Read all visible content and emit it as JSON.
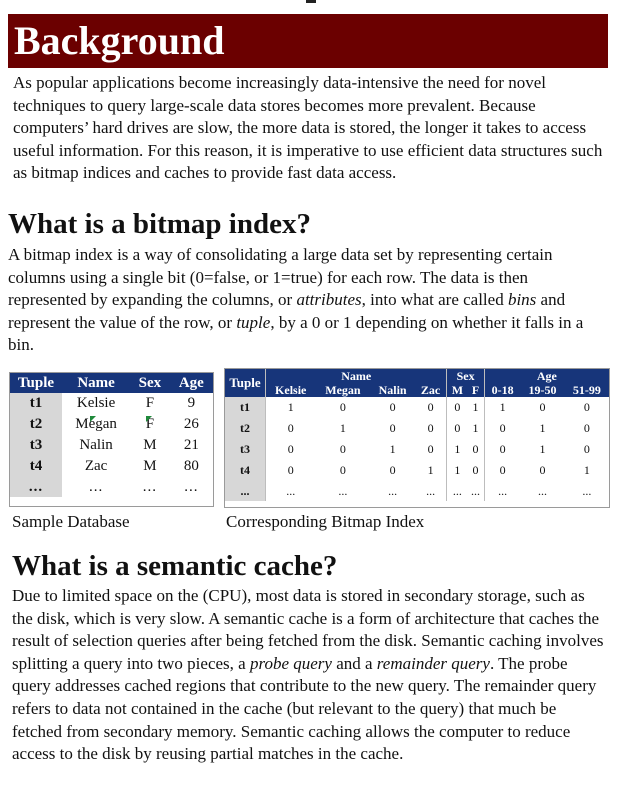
{
  "sections": {
    "background": {
      "title": "Background",
      "body": "As popular applications become increasingly data-intensive the need for novel techniques to query large-scale data stores becomes more prevalent. Because computers’ hard drives are slow, the more data is stored, the longer it takes to access useful information. For this reason, it is imperative to use efficient data structures such as bitmap indices and caches to provide fast data access."
    },
    "bitmap_index": {
      "title": "What is a bitmap index?",
      "body_1": "A bitmap index is a way of consolidating a large data set by representing certain columns using a single bit (0=false, or 1=true) for each row. The data is then represented by expanding the columns, or ",
      "attributes": "attributes",
      "body_2": ", into what are called ",
      "bins": "bins",
      "body_3": " and represent the value of the row, or ",
      "tuple": "tuple",
      "body_4": ",  by a 0 or 1 depending on whether it falls in a bin."
    },
    "semantic_cache": {
      "title": "What is a semantic cache?",
      "body_1": "Due to limited space on the (CPU), most data is stored in secondary storage, such as the disk, which is very slow. A semantic cache is a form of architecture that caches the result of selection queries after being fetched from the disk. Semantic caching involves splitting a query into two pieces, a ",
      "probe": "probe query",
      "body_2": " and a ",
      "remainder": "remainder query",
      "body_3": ". The probe query addresses cached regions that contribute to the new query. The remainder query refers to data not contained in the cache (but relevant to the query) that much be fetched from secondary memory. Semantic caching allows the computer to reduce access to the disk by reusing partial matches in the cache."
    }
  },
  "sample_table": {
    "caption": "Sample Database",
    "headers": [
      "Tuple",
      "Name",
      "Sex",
      "Age"
    ],
    "rows": [
      [
        "t1",
        "Kelsie",
        "F",
        "9"
      ],
      [
        "t2",
        "Megan",
        "F",
        "26"
      ],
      [
        "t3",
        "Nalin",
        "M",
        "21"
      ],
      [
        "t4",
        "Zac",
        "M",
        "80"
      ]
    ],
    "ellipsis": [
      "...",
      "...",
      "...",
      "..."
    ]
  },
  "bitmap_table": {
    "caption": "Corresponding Bitmap Index",
    "tuple_header": "Tuple",
    "groups": [
      "Name",
      "Sex",
      "Age"
    ],
    "bins": [
      "Kelsie",
      "Megan",
      "Nalin",
      "Zac",
      "M",
      "F",
      "0-18",
      "19-50",
      "51-99"
    ],
    "rows": [
      [
        "t1",
        "1",
        "0",
        "0",
        "0",
        "0",
        "1",
        "1",
        "0",
        "0"
      ],
      [
        "t2",
        "0",
        "1",
        "0",
        "0",
        "0",
        "1",
        "0",
        "1",
        "0"
      ],
      [
        "t3",
        "0",
        "0",
        "1",
        "0",
        "1",
        "0",
        "0",
        "1",
        "0"
      ],
      [
        "t4",
        "0",
        "0",
        "0",
        "1",
        "1",
        "0",
        "0",
        "0",
        "1"
      ]
    ],
    "ellipsis": "..."
  },
  "colors": {
    "banner_bg": "#6b0000",
    "table_header_bg": "#17357a",
    "tuple_col_bg": "#d7d7d7"
  }
}
